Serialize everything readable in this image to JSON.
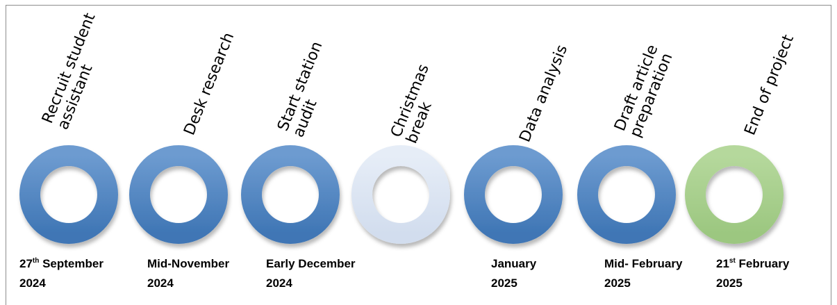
{
  "colors": {
    "blue_ring_light": "#6d9bd0",
    "blue_ring_dark": "#3f76b5",
    "pale_ring": "#dce5f3",
    "green_ring": "#a8d08d",
    "frame_border": "#8c8c8c"
  },
  "milestones": [
    {
      "id": "recruit",
      "style": "blue",
      "label_lines": [
        "Recruit student",
        "assistant"
      ],
      "date": {
        "prefix": "27",
        "sup": "th",
        "line1_rest": " September",
        "line2": "2024"
      }
    },
    {
      "id": "desk",
      "style": "blue",
      "label_lines": [
        "Desk research"
      ],
      "date": {
        "prefix": "Mid-November",
        "sup": "",
        "line1_rest": "",
        "line2": "2024"
      }
    },
    {
      "id": "audit",
      "style": "blue",
      "label_lines": [
        "Start station",
        "audit"
      ],
      "date": {
        "prefix": "Early December",
        "sup": "",
        "line1_rest": "",
        "line2": "2024"
      }
    },
    {
      "id": "christmas",
      "style": "pale",
      "label_lines": [
        "Christmas",
        "break"
      ],
      "date": null
    },
    {
      "id": "analysis",
      "style": "blue",
      "label_lines": [
        "Data analysis"
      ],
      "date": {
        "prefix": "January",
        "sup": "",
        "line1_rest": "",
        "line2": "2025"
      }
    },
    {
      "id": "draft",
      "style": "blue",
      "label_lines": [
        "Draft article",
        "preparation"
      ],
      "date": {
        "prefix": "Mid- February",
        "sup": "",
        "line1_rest": "",
        "line2": "2025"
      }
    },
    {
      "id": "end",
      "style": "green",
      "label_lines": [
        "End of project"
      ],
      "date": {
        "prefix": "21",
        "sup": "st",
        "line1_rest": " February",
        "line2": "2025"
      }
    }
  ]
}
